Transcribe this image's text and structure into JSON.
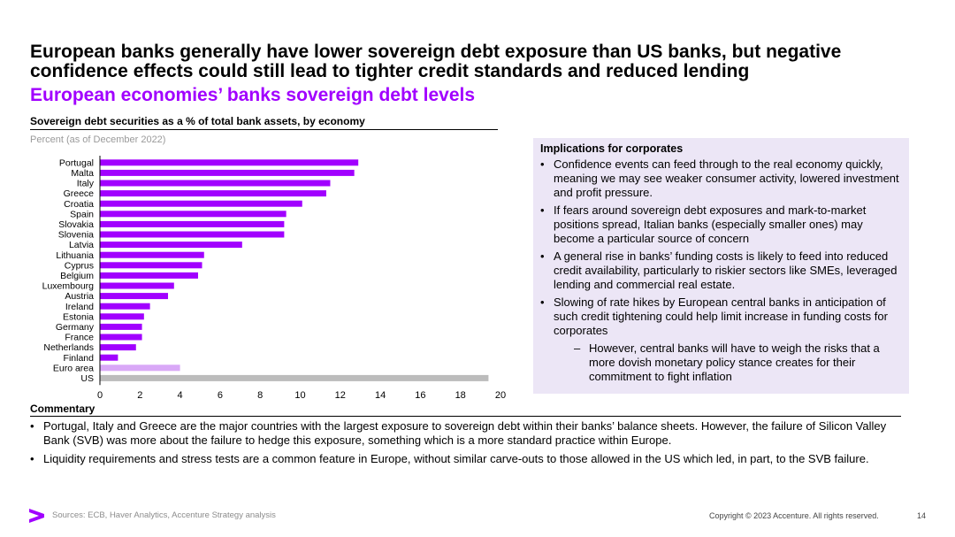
{
  "slide": {
    "title": "European banks generally have lower sovereign debt exposure than US banks, but negative confidence effects could still lead to tighter credit standards and reduced lending",
    "subtitle": "European economies’ banks sovereign debt levels"
  },
  "chart_header": "Sovereign debt securities as a % of total bank assets, by economy",
  "chart_unit": "Percent (as of December 2022)",
  "chart_data": {
    "type": "bar",
    "orientation": "horizontal",
    "title": "Sovereign debt securities as a % of total bank assets, by economy",
    "categories": [
      "Portugal",
      "Malta",
      "Italy",
      "Greece",
      "Croatia",
      "Spain",
      "Slovakia",
      "Slovenia",
      "Latvia",
      "Lithuania",
      "Cyprus",
      "Belgium",
      "Luxembourg",
      "Austria",
      "Ireland",
      "Estonia",
      "Germany",
      "France",
      "Netherlands",
      "Finland",
      "Euro area",
      "US"
    ],
    "values": [
      12.9,
      12.7,
      11.5,
      11.3,
      10.1,
      9.3,
      9.2,
      9.2,
      7.1,
      5.2,
      5.1,
      4.9,
      3.7,
      3.4,
      2.5,
      2.2,
      2.1,
      2.1,
      1.8,
      0.9,
      4.0,
      19.4
    ],
    "colors": [
      "#a100ff",
      "#a100ff",
      "#a100ff",
      "#a100ff",
      "#a100ff",
      "#a100ff",
      "#a100ff",
      "#a100ff",
      "#a100ff",
      "#a100ff",
      "#a100ff",
      "#a100ff",
      "#a100ff",
      "#a100ff",
      "#a100ff",
      "#a100ff",
      "#a100ff",
      "#a100ff",
      "#a100ff",
      "#a100ff",
      "#d9a8f7",
      "#bcbcbc"
    ],
    "xlim": [
      0,
      20
    ],
    "xticks": [
      0,
      2,
      4,
      6,
      8,
      10,
      12,
      14,
      16,
      18,
      20
    ],
    "grid": false
  },
  "implications": {
    "heading": "Implications for corporates",
    "items": [
      "Confidence events can feed through to the real economy quickly, meaning we may see weaker consumer activity, lowered investment and profit pressure.",
      "If fears around sovereign debt exposures and mark-to-market positions spread, Italian banks (especially smaller ones) may become a particular source of concern",
      "A general rise in banks’ funding costs is likely to feed into reduced credit availability, particularly to riskier sectors like SMEs, leveraged lending and commercial real estate.",
      "Slowing of rate hikes by European central banks in anticipation of such credit tightening could help limit increase in funding costs for corporates"
    ],
    "sub_item": "However, central banks will have to weigh the risks that a more dovish monetary policy stance creates for their commitment to fight inflation"
  },
  "commentary": {
    "heading": "Commentary",
    "items": [
      "Portugal, Italy and Greece are the major countries with the largest exposure to sovereign debt within their banks’ balance sheets. However, the failure of Silicon Valley Bank (SVB) was more about the failure to hedge this exposure, something which is a more standard practice within Europe.",
      "Liquidity requirements and stress tests are a common feature in Europe, without similar carve-outs to those allowed in the US which led, in part, to the SVB failure."
    ]
  },
  "footer": {
    "sources": "Sources: ECB, Haver Analytics, Accenture Strategy analysis",
    "copyright": "Copyright © 2023 Accenture. All rights reserved.",
    "page": "14"
  },
  "brand_color": "#a100ff"
}
